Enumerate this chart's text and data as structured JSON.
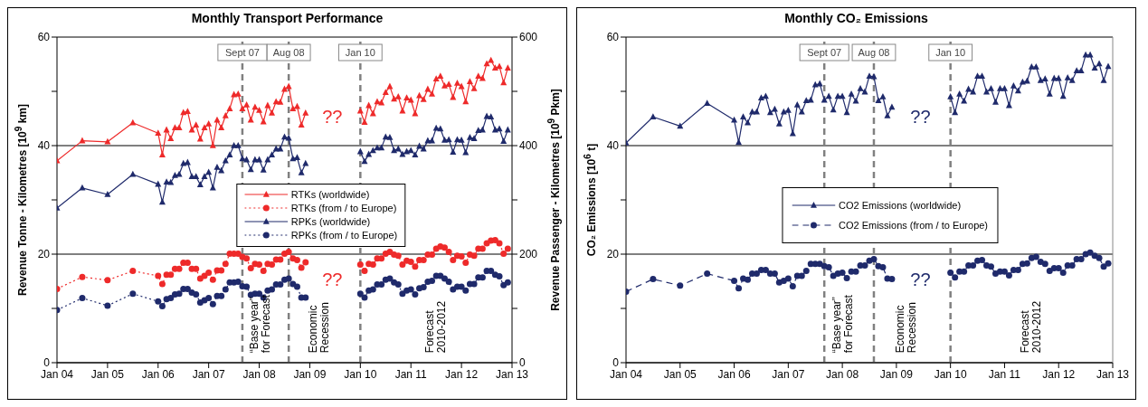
{
  "chart_data": [
    {
      "type": "line",
      "title": "Monthly Transport Performance",
      "ylabel": "Revenue Tonne - Kilometres [10$^{9}$ km]",
      "y2label": "Revenue Passenger - Kilometres [10$^{9}$ Pkm]",
      "x": [
        "2004-01",
        "2004-07",
        "2005-01",
        "2005-07",
        "2006-01",
        "2006-02",
        "2006-03",
        "2006-04",
        "2006-05",
        "2006-06",
        "2006-07",
        "2006-08",
        "2006-09",
        "2006-10",
        "2006-11",
        "2006-12",
        "2007-01",
        "2007-02",
        "2007-03",
        "2007-04",
        "2007-05",
        "2007-06",
        "2007-07",
        "2007-08",
        "2007-09",
        "2007-10",
        "2007-11",
        "2007-12",
        "2008-01",
        "2008-02",
        "2008-03",
        "2008-04",
        "2008-05",
        "2008-06",
        "2008-07",
        "2008-08",
        "2008-09",
        "2008-10",
        "2008-11",
        "2008-12",
        "2009-06",
        "2010-01",
        "2010-02",
        "2010-03",
        "2010-04",
        "2010-05",
        "2010-06",
        "2010-07",
        "2010-08",
        "2010-09",
        "2010-10",
        "2010-11",
        "2010-12",
        "2011-01",
        "2011-02",
        "2011-03",
        "2011-04",
        "2011-05",
        "2011-06",
        "2011-07",
        "2011-08",
        "2011-09",
        "2011-10",
        "2011-11",
        "2011-12",
        "2012-01",
        "2012-02",
        "2012-03",
        "2012-04",
        "2012-05",
        "2012-06",
        "2012-07",
        "2012-08",
        "2012-09",
        "2012-10",
        "2012-11",
        "2012-12"
      ],
      "xlim": [
        "2004-01",
        "2013-01"
      ],
      "xticks": [
        {
          "value": "2004-01",
          "label": "Jan 04"
        },
        {
          "value": "2005-01",
          "label": "Jan 05"
        },
        {
          "value": "2006-01",
          "label": "Jan 06"
        },
        {
          "value": "2007-01",
          "label": "Jan 07"
        },
        {
          "value": "2008-01",
          "label": "Jan 08"
        },
        {
          "value": "2009-01",
          "label": "Jan 09"
        },
        {
          "value": "2010-01",
          "label": "Jan 10"
        },
        {
          "value": "2011-01",
          "label": "Jan 11"
        },
        {
          "value": "2012-01",
          "label": "Jan 12"
        },
        {
          "value": "2013-01",
          "label": "Jan 13"
        }
      ],
      "ylim": [
        0,
        60
      ],
      "yticks": [
        0,
        {
          "value": 10,
          "label": null
        },
        20,
        {
          "value": 30,
          "label": null
        },
        40,
        {
          "value": 50,
          "label": null
        },
        60
      ],
      "y2lim": [
        0,
        600
      ],
      "y2ticks": [
        0,
        {
          "value": 100,
          "label": null
        },
        200,
        {
          "value": 300,
          "label": null
        },
        400,
        {
          "value": 500,
          "label": null
        },
        600
      ],
      "grid": "y",
      "legend": "center",
      "series": [
        {
          "name": "RTKs (worldwide)",
          "color": "#ee2a2a",
          "marker": "triangle",
          "line_style": "solid",
          "values": [
            37.2,
            40.9,
            40.7,
            44.2,
            42.3,
            38.3,
            42.9,
            41.3,
            43.3,
            43.3,
            46.1,
            46.3,
            42.9,
            43.8,
            41.2,
            43.3,
            44.0,
            40.0,
            44.7,
            43.3,
            45.5,
            46.8,
            49.4,
            49.5,
            46.8,
            47.5,
            44.7,
            47.1,
            46.5,
            44.4,
            47.4,
            46.0,
            48.1,
            48.0,
            50.4,
            50.9,
            46.8,
            47.2,
            43.8,
            46.0,
            null,
            46.4,
            44.3,
            47.4,
            45.9,
            48.1,
            47.9,
            49.8,
            50.9,
            48.6,
            49.0,
            46.4,
            48.8,
            48.4,
            45.9,
            49.2,
            48.5,
            50.4,
            49.5,
            52.3,
            52.8,
            51.0,
            51.3,
            48.9,
            51.5,
            50.9,
            48.1,
            51.8,
            50.5,
            52.8,
            52.4,
            55.1,
            55.7,
            54.3,
            54.6,
            51.6,
            54.3
          ]
        },
        {
          "name": "RTKs (from / to Europe)",
          "color": "#ee2a2a",
          "marker": "circle",
          "line_style": "dotted",
          "values": [
            13.6,
            15.8,
            15.2,
            16.9,
            16.0,
            14.5,
            16.2,
            16.2,
            17.3,
            17.3,
            18.4,
            18.4,
            17.3,
            17.3,
            15.5,
            16.0,
            16.6,
            15.3,
            17.0,
            17.0,
            18.2,
            20.1,
            20.1,
            20.1,
            19.5,
            19.2,
            17.4,
            18.2,
            18.1,
            16.9,
            18.2,
            18.1,
            19.0,
            19.0,
            20.1,
            20.4,
            19.2,
            18.9,
            17.5,
            18.5,
            null,
            18.1,
            16.9,
            18.2,
            18.1,
            19.2,
            19.2,
            20.1,
            20.4,
            19.9,
            19.7,
            18.1,
            18.8,
            18.6,
            17.7,
            18.9,
            18.9,
            19.9,
            19.9,
            21.0,
            21.4,
            21.2,
            20.4,
            18.9,
            19.7,
            19.6,
            18.4,
            19.9,
            19.7,
            21.0,
            21.0,
            22.0,
            22.5,
            22.6,
            22.0,
            20.1,
            21.0
          ]
        },
        {
          "name": "RPKs (worldwide)",
          "color": "#1f2a6b",
          "marker": "triangle",
          "line_style": "solid",
          "axis": "y2",
          "values": [
            285,
            322,
            310,
            347,
            329,
            296,
            333,
            332,
            345,
            347,
            367,
            369,
            343,
            343,
            328,
            343,
            351,
            322,
            360,
            354,
            372,
            383,
            400,
            400,
            376,
            374,
            356,
            374,
            374,
            355,
            374,
            383,
            394,
            394,
            416,
            414,
            376,
            378,
            350,
            367,
            null,
            389,
            371,
            384,
            391,
            396,
            396,
            416,
            415,
            391,
            394,
            384,
            389,
            391,
            383,
            399,
            394,
            409,
            409,
            432,
            431,
            410,
            411,
            388,
            411,
            410,
            387,
            415,
            413,
            428,
            429,
            454,
            453,
            429,
            431,
            408,
            429
          ]
        },
        {
          "name": "RPKs (from / to Europe)",
          "color": "#1f2a6b",
          "marker": "circle",
          "line_style": "dotted",
          "axis": "y2",
          "values": [
            97,
            119,
            105,
            127,
            113,
            104,
            117,
            119,
            126,
            127,
            136,
            136,
            129,
            126,
            111,
            115,
            119,
            108,
            123,
            123,
            135,
            148,
            148,
            149,
            141,
            140,
            125,
            127,
            127,
            120,
            133,
            135,
            144,
            144,
            153,
            155,
            145,
            140,
            120,
            120,
            null,
            127,
            120,
            133,
            135,
            144,
            144,
            153,
            155,
            148,
            144,
            127,
            133,
            135,
            126,
            137,
            139,
            149,
            151,
            160,
            160,
            155,
            149,
            135,
            140,
            140,
            133,
            145,
            145,
            157,
            157,
            169,
            169,
            162,
            159,
            143,
            148
          ]
        }
      ],
      "ref_lines": [
        {
          "axis": "x",
          "value": "2007-09",
          "label": "Sept 07",
          "color": "#808080",
          "line_style": "dashed"
        },
        {
          "axis": "x",
          "value": "2008-08",
          "label": "Aug 08",
          "color": "#808080",
          "line_style": "dashed"
        },
        {
          "axis": "x",
          "value": "2010-01",
          "label": "Jan 10",
          "color": "#808080",
          "line_style": "dashed"
        }
      ],
      "annotations": [
        "“Base year”\nfor Forecast",
        "Economic\nRecession",
        "Forecast\n2010-2012",
        "??",
        "??"
      ]
    },
    {
      "type": "line",
      "title": "Monthly CO₂ Emissions",
      "ylabel": "CO₂ Emissions [10$^{6}$ t]",
      "x": [
        "2004-01",
        "2004-07",
        "2005-01",
        "2005-07",
        "2006-01",
        "2006-02",
        "2006-03",
        "2006-04",
        "2006-05",
        "2006-06",
        "2006-07",
        "2006-08",
        "2006-09",
        "2006-10",
        "2006-11",
        "2006-12",
        "2007-01",
        "2007-02",
        "2007-03",
        "2007-04",
        "2007-05",
        "2007-06",
        "2007-07",
        "2007-08",
        "2007-09",
        "2007-10",
        "2007-11",
        "2007-12",
        "2008-01",
        "2008-02",
        "2008-03",
        "2008-04",
        "2008-05",
        "2008-06",
        "2008-07",
        "2008-08",
        "2008-09",
        "2008-10",
        "2008-11",
        "2008-12",
        "2009-06",
        "2010-01",
        "2010-02",
        "2010-03",
        "2010-04",
        "2010-05",
        "2010-06",
        "2010-07",
        "2010-08",
        "2010-09",
        "2010-10",
        "2010-11",
        "2010-12",
        "2011-01",
        "2011-02",
        "2011-03",
        "2011-04",
        "2011-05",
        "2011-06",
        "2011-07",
        "2011-08",
        "2011-09",
        "2011-10",
        "2011-11",
        "2011-12",
        "2012-01",
        "2012-02",
        "2012-03",
        "2012-04",
        "2012-05",
        "2012-06",
        "2012-07",
        "2012-08",
        "2012-09",
        "2012-10",
        "2012-11",
        "2012-12"
      ],
      "xlim": [
        "2004-01",
        "2013-01"
      ],
      "xticks": [
        {
          "value": "2004-01",
          "label": "Jan 04"
        },
        {
          "value": "2005-01",
          "label": "Jan 05"
        },
        {
          "value": "2006-01",
          "label": "Jan 06"
        },
        {
          "value": "2007-01",
          "label": "Jan 07"
        },
        {
          "value": "2008-01",
          "label": "Jan 08"
        },
        {
          "value": "2009-01",
          "label": "Jan 09"
        },
        {
          "value": "2010-01",
          "label": "Jan 10"
        },
        {
          "value": "2011-01",
          "label": "Jan 11"
        },
        {
          "value": "2012-01",
          "label": "Jan 12"
        },
        {
          "value": "2013-01",
          "label": "Jan 13"
        }
      ],
      "ylim": [
        0,
        60
      ],
      "yticks": [
        0,
        {
          "value": 10,
          "label": null
        },
        20,
        {
          "value": 30,
          "label": null
        },
        40,
        {
          "value": 50,
          "label": null
        },
        60
      ],
      "grid": "y",
      "legend": "center",
      "series": [
        {
          "name": "CO2 Emissions (worldwide)",
          "color": "#1f2a6b",
          "marker": "triangle",
          "line_style": "solid",
          "values": [
            40.5,
            45.3,
            43.6,
            47.8,
            44.7,
            40.6,
            45.3,
            44.2,
            46.2,
            46.2,
            48.8,
            49.1,
            46.1,
            46.7,
            44.0,
            46.2,
            46.5,
            42.2,
            47.5,
            46.2,
            48.3,
            48.4,
            51.2,
            51.4,
            48.4,
            49.1,
            46.6,
            49.1,
            49.1,
            46.1,
            49.5,
            48.2,
            50.5,
            49.9,
            52.8,
            52.7,
            48.3,
            49.0,
            45.5,
            47.1,
            null,
            49.0,
            46.1,
            49.5,
            48.2,
            50.4,
            49.9,
            52.8,
            52.8,
            49.9,
            50.5,
            48.0,
            50.5,
            50.5,
            47.4,
            51.0,
            50.1,
            51.7,
            51.9,
            54.5,
            54.5,
            52.0,
            52.3,
            49.5,
            52.4,
            52.4,
            49.1,
            52.5,
            52.0,
            53.8,
            53.8,
            56.7,
            56.7,
            54.3,
            55.1,
            52.0,
            54.6
          ]
        },
        {
          "name": "CO2 Emissions (from / to Europe)",
          "color": "#1f2a6b",
          "marker": "circle",
          "line_style": "dashed",
          "values": [
            13.1,
            15.4,
            14.2,
            16.4,
            15.1,
            13.7,
            15.5,
            15.3,
            16.4,
            16.4,
            17.1,
            17.1,
            16.4,
            16.4,
            14.8,
            15.1,
            15.5,
            14.1,
            16.0,
            16.0,
            16.9,
            18.2,
            18.2,
            18.2,
            17.8,
            17.6,
            16.0,
            16.4,
            16.6,
            15.6,
            16.8,
            16.8,
            17.9,
            17.9,
            18.8,
            19.1,
            17.8,
            17.6,
            15.5,
            15.4,
            null,
            16.6,
            15.7,
            16.8,
            16.8,
            17.9,
            17.9,
            18.8,
            18.9,
            17.9,
            17.7,
            16.4,
            16.8,
            16.8,
            16.1,
            17.1,
            17.1,
            18.2,
            18.3,
            19.3,
            19.5,
            18.6,
            18.2,
            16.9,
            17.4,
            17.4,
            16.6,
            17.9,
            17.9,
            19.1,
            19.1,
            20.0,
            20.3,
            19.7,
            19.3,
            17.7,
            18.3
          ]
        }
      ],
      "ref_lines": [
        {
          "axis": "x",
          "value": "2007-09",
          "label": "Sept 07",
          "color": "#808080",
          "line_style": "dashed"
        },
        {
          "axis": "x",
          "value": "2008-08",
          "label": "Aug 08",
          "color": "#808080",
          "line_style": "dashed"
        },
        {
          "axis": "x",
          "value": "2010-01",
          "label": "Jan 10",
          "color": "#808080",
          "line_style": "dashed"
        }
      ],
      "annotations": [
        "“Base year”\nfor Forecast",
        "Economic\nRecession",
        "Forecast\n2010-2012",
        "??",
        "??"
      ]
    }
  ]
}
